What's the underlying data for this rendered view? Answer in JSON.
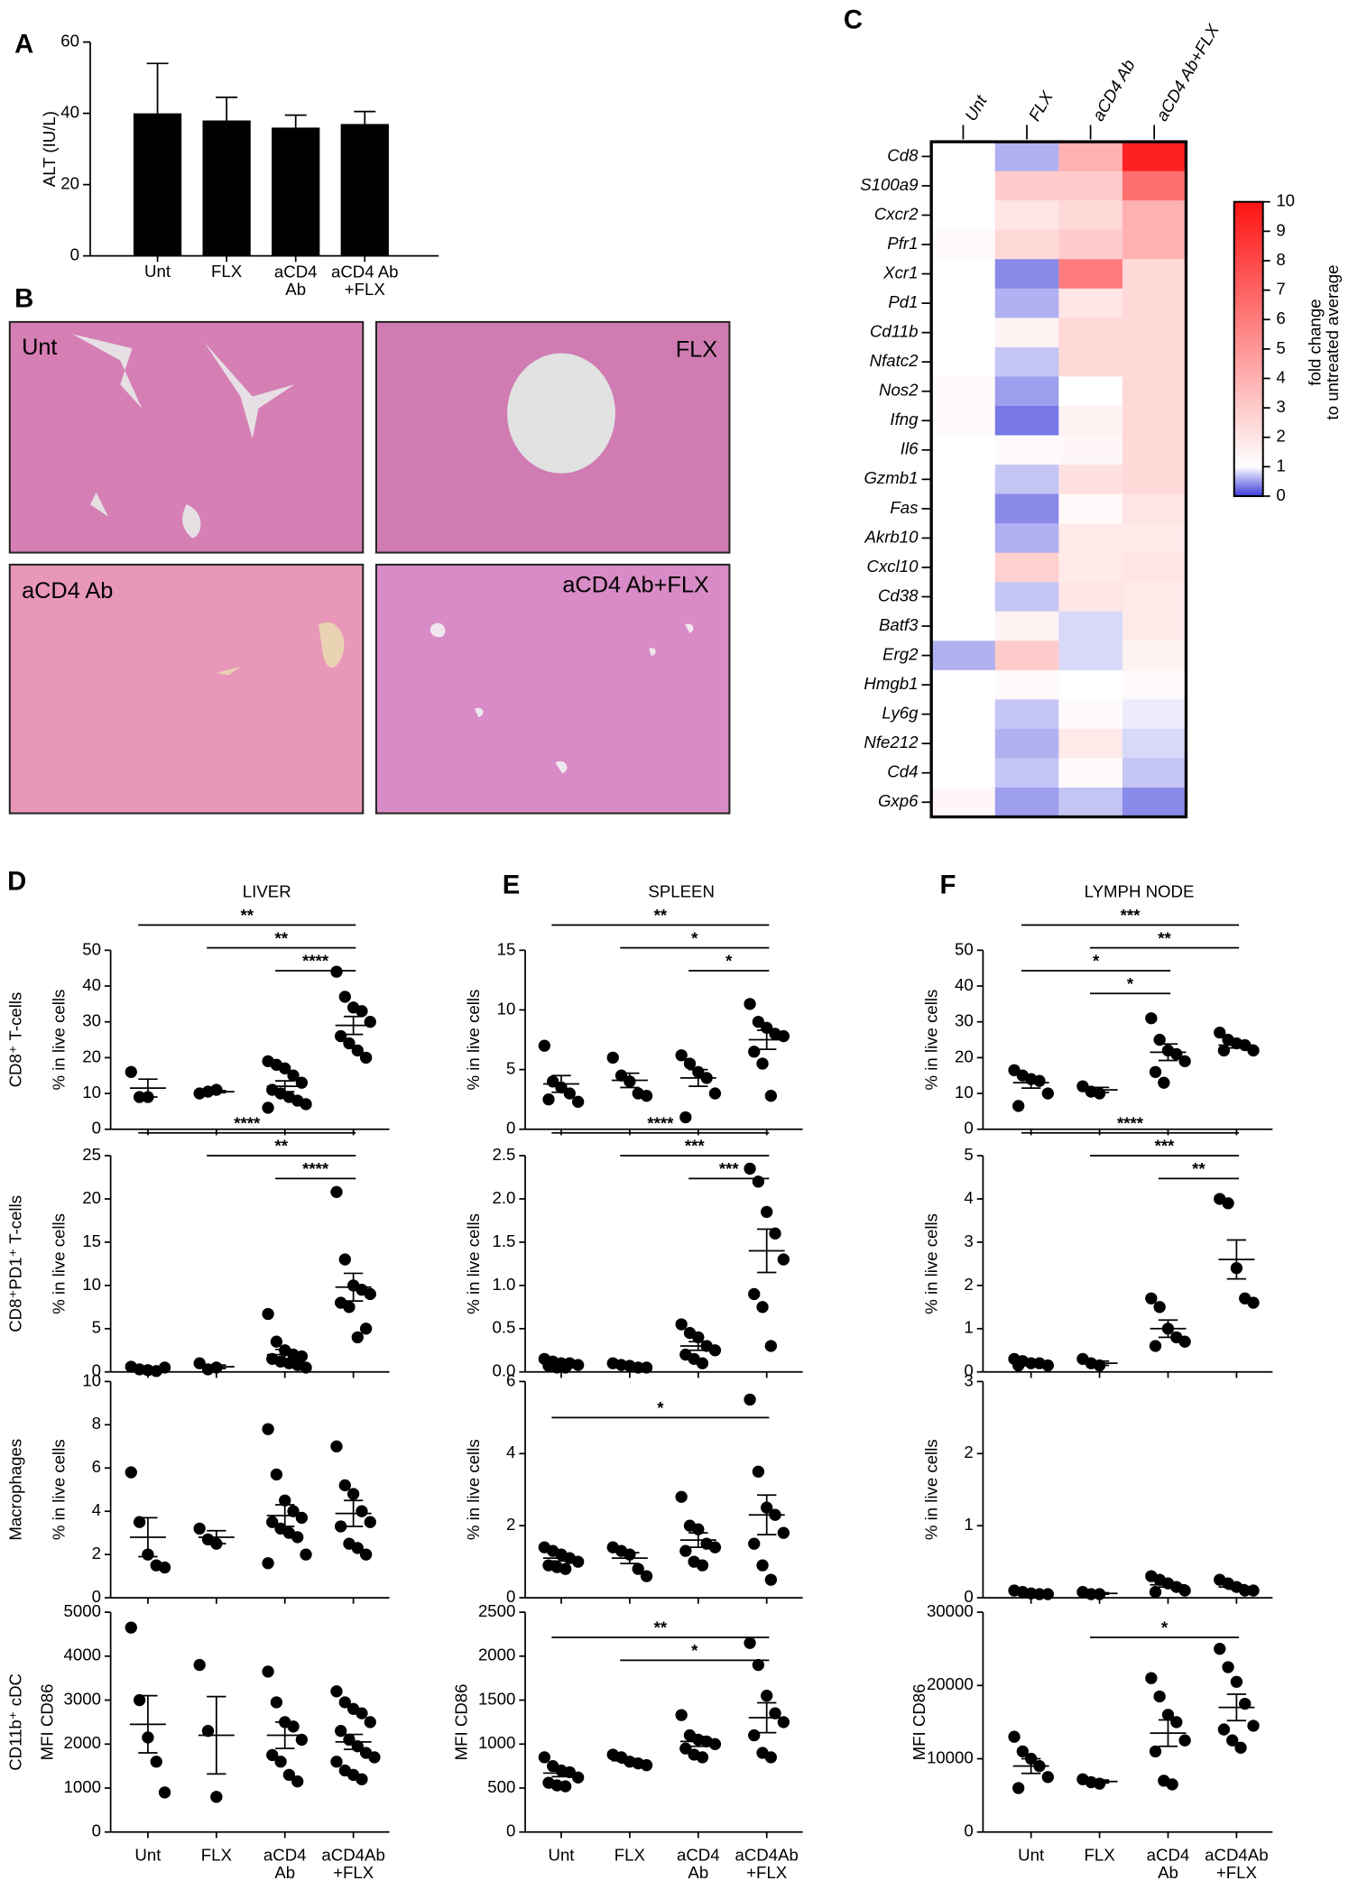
{
  "panel_labels": [
    "A",
    "B",
    "C",
    "D",
    "E",
    "F"
  ],
  "images": [
    {
      "label": "Unt"
    },
    {
      "label": "FLX"
    },
    {
      "label": "aCD4 Ab"
    },
    {
      "label": "aCD4 Ab+FLX"
    }
  ],
  "chart_data": [
    {
      "type": "bar",
      "ylabel": "ALT (IU/L)",
      "categories": [
        "Unt",
        "FLX",
        "aCD4\nAb",
        "aCD4 Ab\n+FLX"
      ],
      "values": [
        40,
        38,
        36,
        37
      ],
      "errors": [
        14,
        6.5,
        3.5,
        3.5
      ],
      "ylim": [
        0,
        60
      ],
      "yticks": [
        0,
        20,
        40,
        60
      ],
      "color": "#000000"
    },
    {
      "type": "heatmap",
      "columns": [
        "Unt",
        "FLX",
        "aCD4 Ab",
        "aCD4 Ab+FLX"
      ],
      "rows": [
        "Cd8",
        "S100a9",
        "Cxcr2",
        "Pfr1",
        "Xcr1",
        "Pd1",
        "Cd11b",
        "Nfatc2",
        "Nos2",
        "Ifng",
        "Il6",
        "Gzmb1",
        "Fas",
        "Akrb10",
        "Cxcl10",
        "Cd38",
        "Batf3",
        "Erg2",
        "Hmgb1",
        "Ly6g",
        "Nfe212",
        "Cd4",
        "Gxp6"
      ],
      "values": [
        [
          1,
          0.6,
          4,
          9.5
        ],
        [
          1,
          3,
          3,
          6.5
        ],
        [
          1,
          2,
          2.5,
          4
        ],
        [
          1.2,
          2.5,
          3,
          4
        ],
        [
          1,
          0.4,
          6,
          2.5
        ],
        [
          1,
          0.6,
          2,
          2.5
        ],
        [
          1,
          1.5,
          2.5,
          2.5
        ],
        [
          1,
          0.7,
          2.5,
          2.5
        ],
        [
          1.2,
          0.5,
          1,
          2.5
        ],
        [
          1.2,
          0.3,
          1.5,
          2.5
        ],
        [
          1,
          1.2,
          1.3,
          2.5
        ],
        [
          1,
          0.7,
          2.2,
          2.5
        ],
        [
          1,
          0.4,
          1.2,
          2
        ],
        [
          1,
          0.6,
          1.8,
          1.8
        ],
        [
          1,
          2.8,
          1.8,
          2
        ],
        [
          1,
          0.7,
          2,
          1.8
        ],
        [
          1,
          1.5,
          0.8,
          1.8
        ],
        [
          0.6,
          3,
          0.8,
          1.5
        ],
        [
          1,
          1.2,
          1,
          1.2
        ],
        [
          1,
          0.7,
          1.2,
          0.9
        ],
        [
          1,
          0.6,
          1.8,
          0.8
        ],
        [
          1,
          0.7,
          1.2,
          0.7
        ],
        [
          1.3,
          0.5,
          0.7,
          0.4
        ]
      ],
      "colorbar_label": "fold change\nto untreated average",
      "clim": [
        0,
        10
      ],
      "cticks": [
        0,
        1,
        2,
        3,
        4,
        5,
        6,
        7,
        8,
        9,
        10
      ],
      "colorscale": [
        [
          0,
          "#3c3cdc"
        ],
        [
          1,
          "#ffffff"
        ],
        [
          10,
          "#ff1414"
        ]
      ]
    },
    {
      "type": "dotplot",
      "title": "LIVER",
      "row_label": "CD8⁺ T-cells",
      "ylabel": "% in live cells",
      "categories": [
        null,
        null,
        null,
        null
      ],
      "color": "#000000",
      "groups": [
        [
          16,
          9,
          9
        ],
        [
          10,
          10.5,
          11
        ],
        [
          19,
          18,
          17,
          15,
          13,
          11,
          10,
          9,
          8,
          7,
          6
        ],
        [
          44,
          37,
          34,
          33,
          30,
          26,
          24,
          22,
          20
        ]
      ],
      "means": [
        11.5,
        10.5,
        12,
        29
      ],
      "sems": [
        2.5,
        0.3,
        1.5,
        2.5
      ],
      "ylim": [
        0,
        50
      ],
      "yticks": [
        0,
        10,
        20,
        30,
        40,
        50
      ],
      "brackets": [
        {
          "text": "**",
          "span": [
            0,
            3
          ]
        },
        {
          "text": "**",
          "span": [
            1,
            3
          ]
        },
        {
          "text": "****",
          "span": [
            2,
            3
          ]
        }
      ]
    },
    {
      "type": "dotplot",
      "row_label": "CD8⁺PD1⁺ T-cells",
      "ylabel": "% in live cells",
      "categories": [
        null,
        null,
        null,
        null
      ],
      "color": "#000000",
      "groups": [
        [
          0.6,
          0.3,
          0.2,
          0.1,
          0.5
        ],
        [
          1,
          0.3,
          0.5
        ],
        [
          6.7,
          3.5,
          2.5,
          2,
          1.8,
          1.5,
          1.2,
          1,
          0.8,
          0.5
        ],
        [
          20.8,
          13,
          10,
          9.5,
          9,
          8,
          7.5,
          4,
          5
        ]
      ],
      "means": [
        0.3,
        0.6,
        2,
        9.8
      ],
      "sems": [
        0.1,
        0.2,
        0.6,
        1.6
      ],
      "ylim": [
        0,
        25
      ],
      "yticks": [
        0,
        5,
        10,
        15,
        20,
        25
      ],
      "brackets": [
        {
          "text": "****",
          "span": [
            0,
            3
          ]
        },
        {
          "text": "**",
          "span": [
            1,
            3
          ]
        },
        {
          "text": "****",
          "span": [
            2,
            3
          ]
        }
      ]
    },
    {
      "type": "dotplot",
      "row_label": "Macrophages",
      "ylabel": "% in live cells",
      "categories": [
        null,
        null,
        null,
        null
      ],
      "color": "#000000",
      "groups": [
        [
          5.8,
          3.5,
          2,
          1.5,
          1.4
        ],
        [
          3.2,
          2.7,
          2.5
        ],
        [
          7.8,
          5.7,
          4.5,
          4,
          3.7,
          3.5,
          3.2,
          3,
          2.8,
          2,
          1.6
        ],
        [
          7,
          5.2,
          4.8,
          4,
          3.5,
          3.3,
          2.5,
          2.3,
          2
        ]
      ],
      "means": [
        2.8,
        2.8,
        3.8,
        3.9
      ],
      "sems": [
        0.9,
        0.3,
        0.5,
        0.6
      ],
      "ylim": [
        0,
        10
      ],
      "yticks": [
        0,
        2,
        4,
        6,
        8,
        10
      ],
      "brackets": []
    },
    {
      "type": "dotplot",
      "row_label": "CD11b⁺ cDC",
      "ylabel": "MFI CD86",
      "categories": [
        "Unt",
        "FLX",
        "aCD4\nAb",
        "aCD4Ab\n+FLX"
      ],
      "color": "#000000",
      "groups": [
        [
          4650,
          3000,
          2150,
          1600,
          900
        ],
        [
          3800,
          2300,
          800
        ],
        [
          3650,
          2950,
          2500,
          2400,
          2100,
          1750,
          1600,
          1300,
          1150
        ],
        [
          3200,
          2950,
          2800,
          2700,
          2500,
          2300,
          2100,
          1950,
          1800,
          1700,
          1600,
          1400,
          1300,
          1200
        ]
      ],
      "means": [
        2450,
        2200,
        2200,
        2050
      ],
      "sems": [
        650,
        880,
        300,
        170
      ],
      "ylim": [
        0,
        5000
      ],
      "yticks": [
        0,
        1000,
        2000,
        3000,
        4000,
        5000
      ],
      "brackets": []
    },
    {
      "type": "dotplot",
      "title": "SPLEEN",
      "ylabel": "% in live cells",
      "categories": [
        null,
        null,
        null,
        null
      ],
      "color": "#000000",
      "groups": [
        [
          7,
          4,
          3.5,
          3,
          2.3,
          2.5
        ],
        [
          6,
          4.5,
          4,
          3,
          2.8
        ],
        [
          6.2,
          5.5,
          4.8,
          4.3,
          3,
          1
        ],
        [
          10.5,
          9,
          8.5,
          8,
          7.8,
          6.5,
          5.5,
          2.8
        ]
      ],
      "means": [
        3.8,
        4.1,
        4.3,
        7.5
      ],
      "sems": [
        0.7,
        0.6,
        0.7,
        0.8
      ],
      "ylim": [
        0,
        15
      ],
      "yticks": [
        0,
        5,
        10,
        15
      ],
      "brackets": [
        {
          "text": "**",
          "span": [
            0,
            3
          ]
        },
        {
          "text": "*",
          "span": [
            1,
            3
          ]
        },
        {
          "text": "*",
          "span": [
            2,
            3
          ]
        }
      ]
    },
    {
      "type": "dotplot",
      "ylabel": "% in live cells",
      "categories": [
        null,
        null,
        null,
        null
      ],
      "color": "#000000",
      "groups": [
        [
          0.15,
          0.12,
          0.1,
          0.1,
          0.08,
          0.07,
          0.05,
          0.05
        ],
        [
          0.1,
          0.08,
          0.07,
          0.05,
          0.05
        ],
        [
          0.55,
          0.45,
          0.4,
          0.3,
          0.25,
          0.2,
          0.15,
          0.1
        ],
        [
          2.35,
          2.2,
          1.85,
          1.6,
          1.3,
          0.9,
          0.75,
          0.3
        ]
      ],
      "means": [
        0.09,
        0.07,
        0.3,
        1.4
      ],
      "sems": [
        0.01,
        0.01,
        0.05,
        0.25
      ],
      "ylim": [
        0,
        2.5
      ],
      "yticks": [
        {
          "value": 0,
          "label": "0.0"
        },
        0.5,
        {
          "value": 1,
          "label": "1.0"
        },
        1.5,
        {
          "value": 2,
          "label": "2.0"
        },
        2.5
      ],
      "brackets": [
        {
          "text": "****",
          "span": [
            0,
            3
          ]
        },
        {
          "text": "***",
          "span": [
            1,
            3
          ]
        },
        {
          "text": "***",
          "span": [
            2,
            3
          ]
        }
      ]
    },
    {
      "type": "dotplot",
      "ylabel": "% in live cells",
      "categories": [
        null,
        null,
        null,
        null
      ],
      "color": "#000000",
      "groups": [
        [
          1.4,
          1.3,
          1.2,
          1.1,
          1,
          0.9,
          0.85,
          0.8
        ],
        [
          1.4,
          1.3,
          1.2,
          0.8,
          0.6
        ],
        [
          2.8,
          2,
          1.9,
          1.5,
          1.4,
          1.3,
          1,
          0.9
        ],
        [
          5.5,
          3.5,
          2.5,
          2.3,
          1.8,
          1.5,
          0.9,
          0.5
        ]
      ],
      "means": [
        1.1,
        1.1,
        1.6,
        2.3
      ],
      "sems": [
        0.08,
        0.15,
        0.2,
        0.55
      ],
      "ylim": [
        0,
        6
      ],
      "yticks": [
        0,
        2,
        4,
        6
      ],
      "brackets": [
        {
          "text": "*",
          "span": [
            0,
            3
          ]
        }
      ]
    },
    {
      "type": "dotplot",
      "ylabel": "MFI CD86",
      "categories": [
        "Unt",
        "FLX",
        "aCD4\nAb",
        "aCD4Ab\n+FLX"
      ],
      "color": "#000000",
      "groups": [
        [
          850,
          750,
          700,
          680,
          620,
          560,
          530,
          520
        ],
        [
          880,
          850,
          800,
          780,
          760
        ],
        [
          1330,
          1100,
          1050,
          1030,
          1000,
          950,
          880,
          850
        ],
        [
          2150,
          1900,
          1550,
          1350,
          1250,
          1100,
          900,
          850
        ]
      ],
      "means": [
        670,
        810,
        1030,
        1300
      ],
      "sems": [
        40,
        25,
        55,
        170
      ],
      "ylim": [
        0,
        2500
      ],
      "yticks": [
        0,
        500,
        1000,
        1500,
        2000,
        2500
      ],
      "brackets": [
        {
          "text": "**",
          "span": [
            0,
            3
          ]
        },
        {
          "text": "*",
          "span": [
            1,
            3
          ]
        }
      ]
    },
    {
      "type": "dotplot",
      "title": "LYMPH NODE",
      "ylabel": "% in live cells",
      "categories": [
        null,
        null,
        null,
        null
      ],
      "color": "#000000",
      "groups": [
        [
          16.5,
          15,
          14,
          13.5,
          10,
          6.5
        ],
        [
          12,
          10.5,
          10
        ],
        [
          31,
          25,
          22,
          21,
          19,
          16,
          13
        ],
        [
          27,
          25,
          24,
          23.5,
          22,
          22
        ]
      ],
      "means": [
        13,
        11,
        21.5,
        23.5
      ],
      "sems": [
        1.5,
        0.7,
        2.3,
        0.8
      ],
      "ylim": [
        0,
        50
      ],
      "yticks": [
        0,
        10,
        20,
        30,
        40,
        50
      ],
      "brackets": [
        {
          "text": "***",
          "span": [
            0,
            3
          ]
        },
        {
          "text": "**",
          "span": [
            1,
            3
          ]
        },
        {
          "text": "*",
          "span": [
            0,
            2
          ]
        },
        {
          "text": "*",
          "span": [
            1,
            2
          ]
        }
      ]
    },
    {
      "type": "dotplot",
      "ylabel": "% in live cells",
      "categories": [
        null,
        null,
        null,
        null
      ],
      "color": "#000000",
      "groups": [
        [
          0.3,
          0.25,
          0.2,
          0.2,
          0.15,
          0.15
        ],
        [
          0.3,
          0.2,
          0.15
        ],
        [
          1.7,
          1.5,
          1,
          0.8,
          0.7,
          0.6
        ],
        [
          4,
          3.9,
          2.4,
          1.7,
          1.6
        ]
      ],
      "means": [
        0.2,
        0.2,
        1,
        2.6
      ],
      "sems": [
        0.03,
        0.05,
        0.2,
        0.45
      ],
      "ylim": [
        0,
        5
      ],
      "yticks": [
        0,
        1,
        2,
        3,
        4,
        5
      ],
      "brackets": [
        {
          "text": "****",
          "span": [
            0,
            3
          ]
        },
        {
          "text": "***",
          "span": [
            1,
            3
          ]
        },
        {
          "text": "**",
          "span": [
            2,
            3
          ]
        }
      ]
    },
    {
      "type": "dotplot",
      "ylabel": "% in live cells",
      "categories": [
        null,
        null,
        null,
        null
      ],
      "color": "#000000",
      "groups": [
        [
          0.1,
          0.08,
          0.06,
          0.05,
          0.05
        ],
        [
          0.08,
          0.05,
          0.05
        ],
        [
          0.3,
          0.25,
          0.2,
          0.15,
          0.1,
          0.08
        ],
        [
          0.25,
          0.2,
          0.15,
          0.1,
          0.1
        ]
      ],
      "means": [
        0.07,
        0.06,
        0.18,
        0.15
      ],
      "sems": [
        0.01,
        0.01,
        0.03,
        0.03
      ],
      "ylim": [
        0,
        3
      ],
      "yticks": [
        0,
        1,
        2,
        3
      ],
      "brackets": []
    },
    {
      "type": "dotplot",
      "ylabel": "MFI CD86",
      "categories": [
        "Unt",
        "FLX",
        "aCD4\nAb",
        "aCD4Ab\n+FLX"
      ],
      "color": "#000000",
      "groups": [
        [
          13000,
          11000,
          10000,
          9000,
          7500,
          6000
        ],
        [
          7200,
          6800,
          6600
        ],
        [
          21000,
          18500,
          16000,
          15000,
          12500,
          11000,
          7000,
          6500
        ],
        [
          25000,
          22500,
          20500,
          17500,
          14500,
          14000,
          12500,
          11500
        ]
      ],
      "means": [
        9000,
        6900,
        13500,
        17000
      ],
      "sems": [
        1000,
        200,
        1800,
        1800
      ],
      "ylim": [
        0,
        30000
      ],
      "yticks": [
        0,
        10000,
        20000,
        30000
      ],
      "brackets": [
        {
          "text": "*",
          "span": [
            1,
            3
          ]
        }
      ]
    }
  ]
}
